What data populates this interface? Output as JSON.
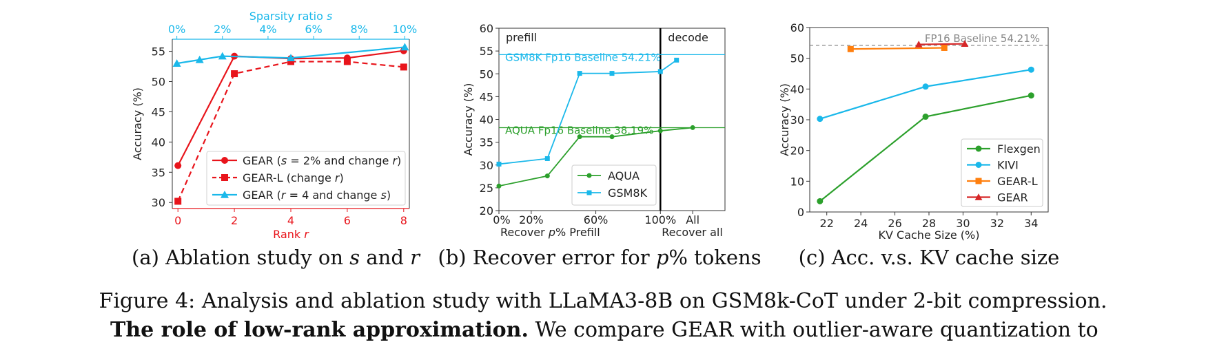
{
  "figure_caption": "Figure 4: Analysis and ablation study with LLaMA3-8B on GSM8k-CoT under 2-bit compression.",
  "body_text": {
    "bold": "The role of low-rank approximation.",
    "rest": " We compare GEAR with outlier-aware quantization to"
  },
  "chart_data": [
    {
      "type": "line",
      "caption": {
        "label": "(a) Ablation study on ",
        "s": "s",
        "and": " and ",
        "r": "r"
      },
      "xlabel_prefix": "Rank ",
      "xlabel_var": "r",
      "top_xlabel_prefix": "Sparsity ratio ",
      "top_xlabel_var": "s",
      "ylabel": "Accuracy (%)",
      "xlim": [
        -0.2,
        8.2
      ],
      "ylim": [
        29,
        57
      ],
      "x_ticks": [
        0,
        2,
        4,
        6,
        8
      ],
      "x_tick_labels": [
        "0",
        "2",
        "4",
        "6",
        "8"
      ],
      "y_ticks": [
        30,
        35,
        40,
        45,
        50,
        55
      ],
      "y_tick_labels": [
        "30",
        "35",
        "40",
        "45",
        "50",
        "55"
      ],
      "top_x_ticks": [
        0,
        2,
        4,
        6,
        8,
        10
      ],
      "top_x_tick_labels": [
        "0%",
        "2%",
        "4%",
        "6%",
        "8%",
        "10%"
      ],
      "top_xlim": [
        -0.2,
        10.2
      ],
      "legend_position": "lower-right",
      "colors": {
        "red": "#e8141b",
        "blue": "#1ab8ea",
        "axis_red": "#e8141b",
        "axis_blue": "#1ab8ea"
      },
      "series": [
        {
          "name_parts": [
            "GEAR (",
            "s",
            " = 2% and change ",
            "r",
            ")"
          ],
          "axis": "bottom",
          "color": "#e8141b",
          "marker": "circle",
          "dash": "solid",
          "x": [
            0,
            2,
            4,
            6,
            8
          ],
          "y": [
            36.1,
            54.2,
            53.8,
            53.9,
            55.1
          ]
        },
        {
          "name_parts": [
            "GEAR-L (change ",
            "r",
            ")"
          ],
          "axis": "bottom",
          "color": "#e8141b",
          "marker": "square",
          "dash": "dashed",
          "x": [
            0,
            2,
            4,
            6,
            8
          ],
          "y": [
            30.2,
            51.3,
            53.3,
            53.3,
            52.4
          ]
        },
        {
          "name_parts": [
            "GEAR (",
            "r",
            " = 4 and change ",
            "s",
            ")"
          ],
          "axis": "top",
          "color": "#1ab8ea",
          "marker": "triangle",
          "dash": "solid",
          "x": [
            0,
            1,
            2,
            5,
            10
          ],
          "y": [
            53.0,
            53.6,
            54.2,
            53.9,
            55.7
          ]
        }
      ]
    },
    {
      "type": "line",
      "caption": {
        "label": "(b) Recover error for ",
        "p": "p",
        "rest": "% tokens"
      },
      "ylabel": "Accuracy (%)",
      "xlabel_left_prefix": "Recover ",
      "xlabel_left_var": "p",
      "xlabel_left_rest": "% Prefill",
      "xlabel_right": "Recover all",
      "x_tick_labels": [
        {
          "x": 0,
          "label": "0%"
        },
        {
          "x": 20,
          "label": "20%"
        },
        {
          "x": 60,
          "label": "60%"
        },
        {
          "x": 100,
          "label": "100%"
        },
        {
          "x": 120,
          "label": "All"
        }
      ],
      "xlim": [
        0,
        140
      ],
      "ylim": [
        20,
        60
      ],
      "y_ticks": [
        20,
        25,
        30,
        35,
        40,
        45,
        50,
        55,
        60
      ],
      "y_tick_labels": [
        "20",
        "25",
        "30",
        "35",
        "40",
        "45",
        "50",
        "55",
        "60"
      ],
      "divider_x": 100,
      "region_labels": [
        "prefill",
        "decode"
      ],
      "baselines": [
        {
          "label": "GSM8K Fp16 Baseline 54.21%",
          "y": 54.21,
          "color": "#1ab8ea"
        },
        {
          "label": "AQUA Fp16 Baseline 38.19%",
          "y": 38.19,
          "color": "#2ca02c"
        }
      ],
      "legend_position": "lower-center",
      "series": [
        {
          "name": "AQUA",
          "color": "#2ca02c",
          "marker": "circle",
          "x": [
            0,
            30,
            50,
            70,
            100,
            120
          ],
          "y": [
            25.4,
            27.6,
            36.2,
            36.2,
            37.5,
            38.2
          ]
        },
        {
          "name": "GSM8K",
          "color": "#1ab8ea",
          "marker": "square",
          "x": [
            0,
            30,
            50,
            70,
            100,
            110
          ],
          "y": [
            30.2,
            31.4,
            50.1,
            50.1,
            50.5,
            53.0
          ]
        }
      ]
    },
    {
      "type": "line",
      "caption": {
        "label": "(c) Acc. v.s. KV cache size"
      },
      "xlabel": "KV Cache Size (%)",
      "ylabel": "Accuracy (%)",
      "xlim": [
        21,
        35
      ],
      "ylim": [
        0,
        60
      ],
      "x_ticks": [
        22,
        24,
        26,
        28,
        30,
        32,
        34
      ],
      "x_tick_labels": [
        "22",
        "24",
        "26",
        "28",
        "30",
        "32",
        "34"
      ],
      "y_ticks": [
        0,
        10,
        20,
        30,
        40,
        50,
        60
      ],
      "y_tick_labels": [
        "0",
        "10",
        "20",
        "30",
        "40",
        "50",
        "60"
      ],
      "baseline": {
        "label": "FP16 Baseline 54.21%",
        "y": 54.21,
        "color": "#888888"
      },
      "legend_position": "lower-right",
      "series": [
        {
          "name": "Flexgen",
          "color": "#2ca02c",
          "marker": "circle",
          "x": [
            21.6,
            27.8,
            34.0
          ],
          "y": [
            3.5,
            31.0,
            37.9
          ]
        },
        {
          "name": "KIVI",
          "color": "#1ab8ea",
          "marker": "circle",
          "x": [
            21.6,
            27.8,
            34.0
          ],
          "y": [
            30.3,
            40.8,
            46.3
          ]
        },
        {
          "name": "GEAR-L",
          "color": "#ff7f0e",
          "marker": "square",
          "x": [
            23.4,
            28.9
          ],
          "y": [
            53.0,
            53.4
          ]
        },
        {
          "name": "GEAR",
          "color": "#d62728",
          "marker": "triangle",
          "x": [
            27.4,
            30.1
          ],
          "y": [
            54.5,
            54.7
          ]
        }
      ]
    }
  ]
}
